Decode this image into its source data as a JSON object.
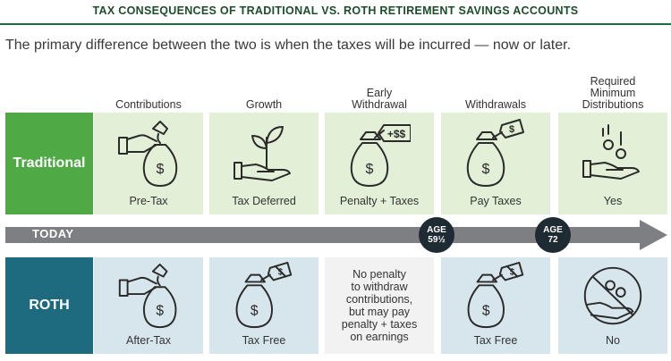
{
  "title": "TAX CONSEQUENCES OF TRADITIONAL VS. ROTH RETIREMENT SAVINGS ACCOUNTS",
  "subtitle": "The primary difference between the two is when the taxes will be incurred — now or later.",
  "columns": [
    {
      "lines": [
        "Contributions"
      ]
    },
    {
      "lines": [
        "Growth"
      ]
    },
    {
      "lines": [
        "Early",
        "Withdrawal"
      ]
    },
    {
      "lines": [
        "Withdrawals"
      ]
    },
    {
      "lines": [
        "Required",
        "Minimum",
        "Distributions"
      ]
    }
  ],
  "rows": {
    "traditional": {
      "label": "Traditional",
      "color": "#4faa45",
      "cells": [
        {
          "icon": "hand-money-bag-icon",
          "caption": "Pre-Tax"
        },
        {
          "icon": "hand-sprout-icon",
          "caption": "Tax Deferred"
        },
        {
          "icon": "money-bag-tag-icon",
          "tag_text": "+$$",
          "caption": "Penalty + Taxes"
        },
        {
          "icon": "money-bag-tag-icon",
          "tag_text": "$",
          "caption": "Pay Taxes"
        },
        {
          "icon": "hand-coins-icon",
          "caption": "Yes"
        }
      ]
    },
    "roth": {
      "label": "ROTH",
      "color": "#1e6b80",
      "cells": [
        {
          "icon": "hand-money-bag-icon",
          "caption": "After-Tax"
        },
        {
          "icon": "money-bag-no-tax-icon",
          "caption": "Tax Free"
        },
        {
          "note": [
            "No penalty",
            "to withdraw",
            "contributions,",
            "but may pay",
            "penalty + taxes",
            "on earnings"
          ]
        },
        {
          "icon": "money-bag-no-tax-icon",
          "caption": "Tax Free"
        },
        {
          "icon": "no-coins-icon",
          "caption": "No"
        }
      ]
    }
  },
  "timeline": {
    "label": "TODAY",
    "milestones": [
      {
        "line1": "AGE",
        "line2": "59½"
      },
      {
        "line1": "AGE",
        "line2": "72"
      }
    ]
  }
}
